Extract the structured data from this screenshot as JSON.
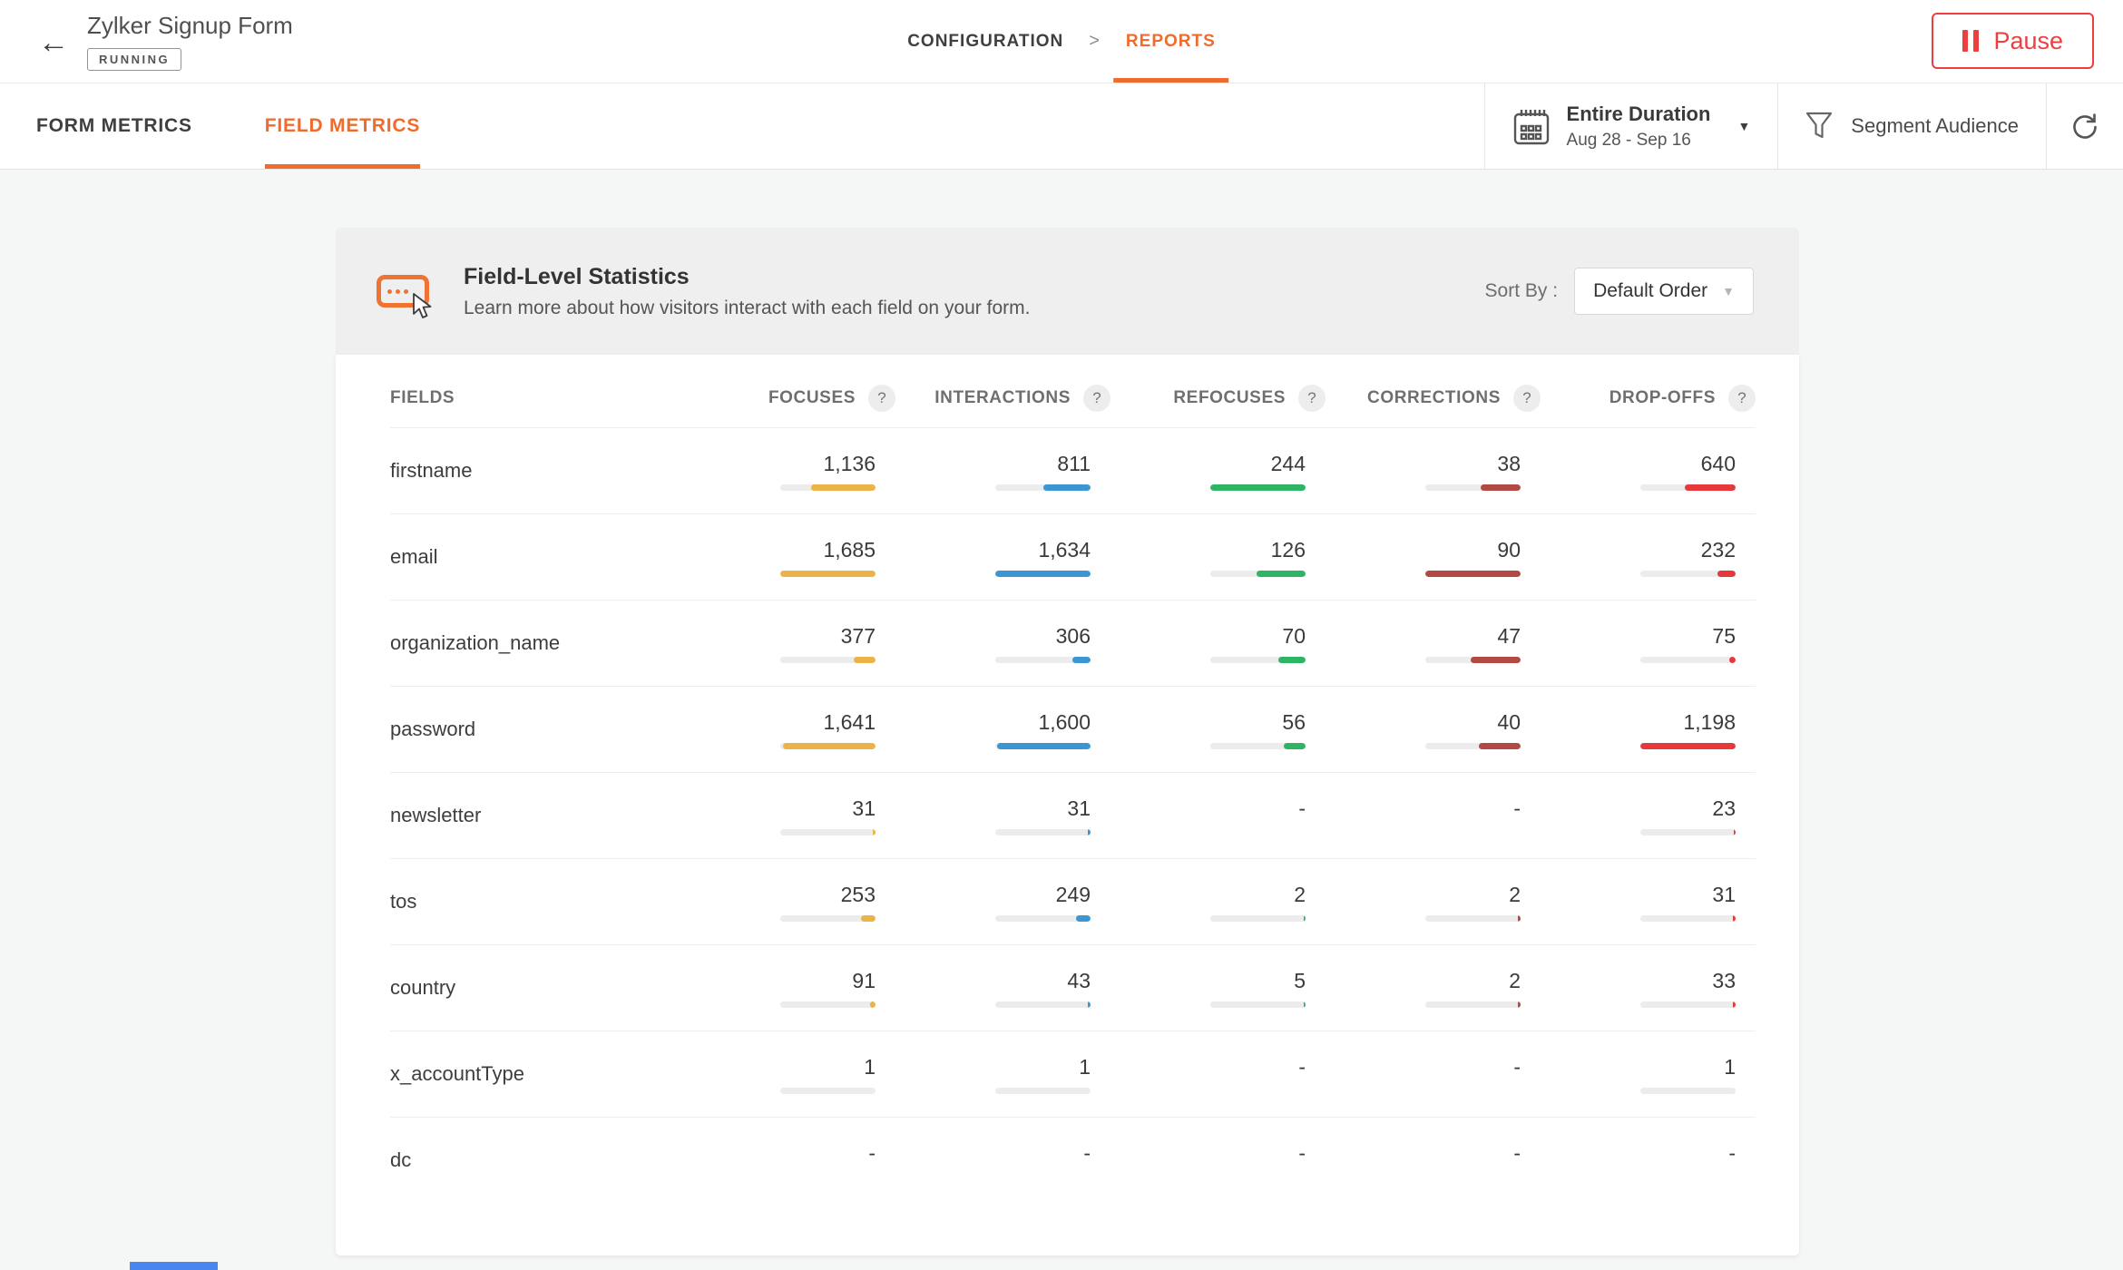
{
  "glyphs": {
    "back": "←",
    "separator": ">",
    "caret": "▼",
    "help": "?"
  },
  "header": {
    "title": "Zylker Signup Form",
    "status_badge": "RUNNING",
    "breadcrumb": {
      "configuration": "CONFIGURATION",
      "reports": "REPORTS"
    },
    "pause_label": "Pause"
  },
  "toolbar": {
    "tabs": [
      {
        "label": "FORM METRICS",
        "active": false
      },
      {
        "label": "FIELD METRICS",
        "active": true
      }
    ],
    "date_range": {
      "title": "Entire Duration",
      "subtitle": "Aug 28 - Sep 16"
    },
    "segment_label": "Segment Audience"
  },
  "stats": {
    "title": "Field-Level Statistics",
    "subtitle": "Learn more about how visitors interact with each field on your form.",
    "sort_by_label": "Sort By :",
    "sort_value": "Default Order"
  },
  "colors": {
    "accent_orange": "#ef6c2e",
    "pause_red": "#ee3e3e",
    "focuses_bar": "#ecb349",
    "interactions_bar": "#3b97d3",
    "refocuses_bar": "#2eb563",
    "corrections_bar": "#b04a42",
    "dropoffs_bar": "#e6393c"
  },
  "table": {
    "fields_header": "FIELDS",
    "help_label": "?",
    "columns": [
      {
        "label": "FOCUSES",
        "color": "#ecb349"
      },
      {
        "label": "INTERACTIONS",
        "color": "#3b97d3"
      },
      {
        "label": "REFOCUSES",
        "color": "#2eb563"
      },
      {
        "label": "CORRECTIONS",
        "color": "#b04a42"
      },
      {
        "label": "DROP-OFFS",
        "color": "#e6393c"
      }
    ],
    "rows": [
      {
        "field": "firstname",
        "cells": [
          {
            "v": "1,136",
            "f": 0.674
          },
          {
            "v": "811",
            "f": 0.496
          },
          {
            "v": "244",
            "f": 1
          },
          {
            "v": "38",
            "f": 0.42
          },
          {
            "v": "640",
            "f": 0.534
          }
        ]
      },
      {
        "field": "email",
        "cells": [
          {
            "v": "1,685",
            "f": 1
          },
          {
            "v": "1,634",
            "f": 1
          },
          {
            "v": "126",
            "f": 0.516
          },
          {
            "v": "90",
            "f": 1
          },
          {
            "v": "232",
            "f": 0.194
          }
        ]
      },
      {
        "field": "organization_name",
        "cells": [
          {
            "v": "377",
            "f": 0.224
          },
          {
            "v": "306",
            "f": 0.187
          },
          {
            "v": "70",
            "f": 0.287
          },
          {
            "v": "47",
            "f": 0.52
          },
          {
            "v": "75",
            "f": 0.063
          }
        ]
      },
      {
        "field": "password",
        "cells": [
          {
            "v": "1,641",
            "f": 0.974
          },
          {
            "v": "1,600",
            "f": 0.979
          },
          {
            "v": "56",
            "f": 0.23
          },
          {
            "v": "40",
            "f": 0.44
          },
          {
            "v": "1,198",
            "f": 1
          }
        ]
      },
      {
        "field": "newsletter",
        "cells": [
          {
            "v": "31",
            "f": 0.03
          },
          {
            "v": "31",
            "f": 0.03
          },
          {
            "v": "-",
            "f": null
          },
          {
            "v": "-",
            "f": null
          },
          {
            "v": "23",
            "f": 0.02
          }
        ]
      },
      {
        "field": "tos",
        "cells": [
          {
            "v": "253",
            "f": 0.15
          },
          {
            "v": "249",
            "f": 0.152
          },
          {
            "v": "2",
            "f": 0.015
          },
          {
            "v": "2",
            "f": 0.025
          },
          {
            "v": "31",
            "f": 0.026
          }
        ]
      },
      {
        "field": "country",
        "cells": [
          {
            "v": "91",
            "f": 0.06
          },
          {
            "v": "43",
            "f": 0.03
          },
          {
            "v": "5",
            "f": 0.02
          },
          {
            "v": "2",
            "f": 0.025
          },
          {
            "v": "33",
            "f": 0.028
          }
        ]
      },
      {
        "field": "x_accountType",
        "cells": [
          {
            "v": "1",
            "f": 0
          },
          {
            "v": "1",
            "f": 0
          },
          {
            "v": "-",
            "f": null
          },
          {
            "v": "-",
            "f": null
          },
          {
            "v": "1",
            "f": 0
          }
        ]
      },
      {
        "field": "dc",
        "cells": [
          {
            "v": "-",
            "f": null
          },
          {
            "v": "-",
            "f": null
          },
          {
            "v": "-",
            "f": null
          },
          {
            "v": "-",
            "f": null
          },
          {
            "v": "-",
            "f": null
          }
        ]
      }
    ]
  }
}
